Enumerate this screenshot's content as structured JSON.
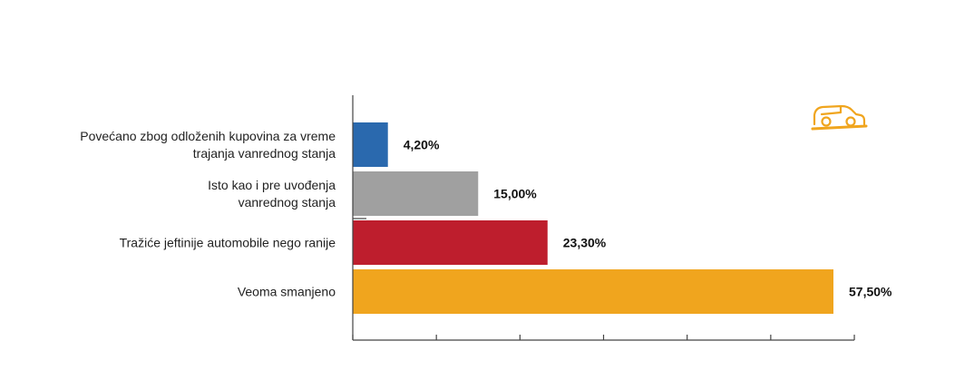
{
  "icon": {
    "name": "car-icon",
    "color": "#f0a51e"
  },
  "chart_data": {
    "type": "bar",
    "orientation": "horizontal",
    "categories": [
      [
        "Povećano zbog odloženih kupovina za vreme",
        "trajanja vanrednog stanja"
      ],
      [
        "Isto kao i pre uvođenja",
        "vanrednog stanja"
      ],
      [
        "Tražiće jeftinije automobile nego ranije"
      ],
      [
        "Veoma smanjeno"
      ]
    ],
    "values": [
      4.2,
      15.0,
      23.3,
      57.5
    ],
    "value_labels": [
      "4,20%",
      "15,00%",
      "23,30%",
      "57,50%"
    ],
    "colors": [
      "#2a69ae",
      "#a0a0a0",
      "#be1e2d",
      "#f0a51e"
    ],
    "xlim": [
      0,
      60
    ],
    "x_ticks": [
      0,
      10,
      20,
      30,
      40,
      50,
      60
    ],
    "title": "",
    "xlabel": "",
    "ylabel": "",
    "grid": false,
    "legend": "none"
  }
}
